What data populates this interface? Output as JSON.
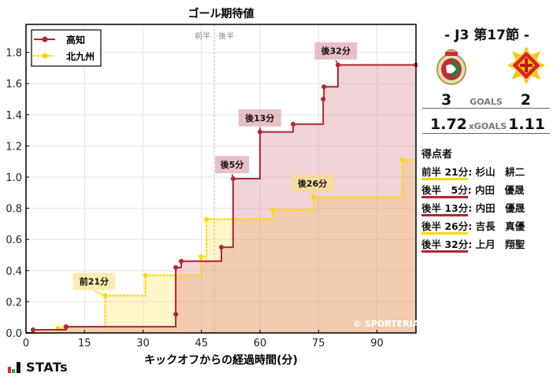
{
  "chart_data": {
    "type": "line",
    "subtype": "step",
    "title": "ゴール期待値",
    "xlabel": "キックオフからの経過時間(分)",
    "ylabel": "",
    "xlim": [
      0,
      100
    ],
    "ylim": [
      0,
      1.98
    ],
    "xticks": [
      0,
      15,
      30,
      45,
      60,
      75,
      90
    ],
    "yticks": [
      0.0,
      0.2,
      0.4,
      0.6,
      0.8,
      1.0,
      1.2,
      1.4,
      1.6,
      1.8
    ],
    "grid": true,
    "legend_position": "upper left",
    "half_marker": {
      "x": 48.3,
      "first_label": "前半",
      "second_label": "後半"
    },
    "series": [
      {
        "name": "高知",
        "color": "#b22530",
        "fill": "rgba(200,80,100,0.25)",
        "linestyle": "solid",
        "points": [
          [
            0,
            0
          ],
          [
            1.8,
            0.02
          ],
          [
            10.3,
            0.04
          ],
          [
            38.4,
            0.12
          ],
          [
            38.4,
            0.42
          ],
          [
            39.8,
            0.46
          ],
          [
            50.1,
            0.55
          ],
          [
            53.1,
            0.99
          ],
          [
            60.0,
            1.29
          ],
          [
            68.5,
            1.34
          ],
          [
            76.2,
            1.5
          ],
          [
            76.4,
            1.58
          ],
          [
            80.0,
            1.72
          ],
          [
            100,
            1.72
          ]
        ]
      },
      {
        "name": "北九州",
        "color": "#ffd700",
        "fill": "rgba(255,225,80,0.3)",
        "linestyle": "dotted",
        "points": [
          [
            0,
            0
          ],
          [
            8.2,
            0.03
          ],
          [
            10.0,
            0.04
          ],
          [
            20.3,
            0.24
          ],
          [
            30.6,
            0.37
          ],
          [
            44.9,
            0.49
          ],
          [
            46.3,
            0.73
          ],
          [
            63.3,
            0.79
          ],
          [
            73.8,
            0.87
          ],
          [
            96.5,
            1.11
          ],
          [
            100,
            1.11
          ]
        ]
      }
    ],
    "annotations": [
      {
        "text": "前21分",
        "x": 20.3,
        "y": 0.24,
        "team": "北九州",
        "label_x": 12,
        "label_y": 0.33
      },
      {
        "text": "後5分",
        "x": 53.1,
        "y": 0.99,
        "team": "高知",
        "label_x": 48.5,
        "label_y": 1.08
      },
      {
        "text": "後13分",
        "x": 60.0,
        "y": 1.29,
        "team": "高知",
        "label_x": 54.5,
        "label_y": 1.38
      },
      {
        "text": "後26分",
        "x": 73.8,
        "y": 0.87,
        "team": "北九州",
        "label_x": 68,
        "label_y": 0.96
      },
      {
        "text": "後32分",
        "x": 80.0,
        "y": 1.72,
        "team": "高知",
        "label_x": 74,
        "label_y": 1.81
      }
    ],
    "watermark": "© SPORTERIA"
  },
  "match": {
    "round": "-  J3 第17節  -",
    "home": {
      "name": "高知",
      "goals": "3",
      "xgoals": "1.72"
    },
    "away": {
      "name": "北九州",
      "goals": "2",
      "xgoals": "1.11"
    },
    "goals_label": "GOALS",
    "xgoals_label": "xGOALS"
  },
  "scorers": {
    "title": "得点者",
    "items": [
      {
        "time": "前半 21分",
        "name": ": 杉山　耕二",
        "color": "#ffd700"
      },
      {
        "time": "後半　5分",
        "name": ": 内田　優晟",
        "color": "#b22530"
      },
      {
        "time": "後半 13分",
        "name": ": 内田　優晟",
        "color": "#b22530"
      },
      {
        "time": "後半 26分",
        "name": ": 吉長　真優",
        "color": "#ffd700"
      },
      {
        "time": "後半 32分",
        "name": ": 上月　翔聖",
        "color": "#b22530"
      }
    ]
  },
  "brand": {
    "label": "STATs"
  }
}
